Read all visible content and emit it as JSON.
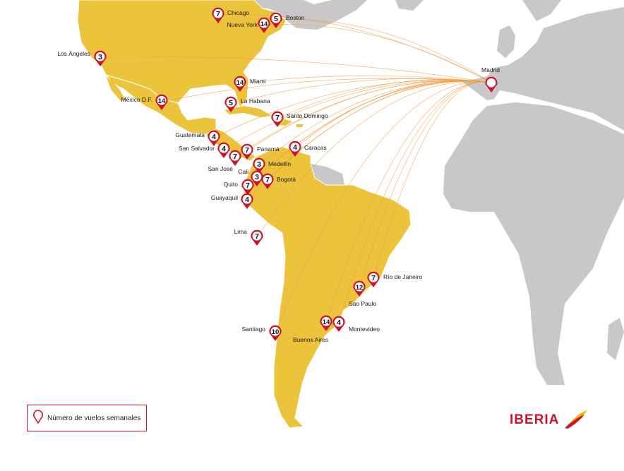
{
  "colors": {
    "ocean": "#ffffff",
    "land_other": "#c8c8c8",
    "land_served": "#ecc43c",
    "border": "#ffffff",
    "route": "#f39a3c",
    "pin": "#d0112b",
    "brand_red": "#d0112b",
    "brand_yellow": "#f4b000"
  },
  "hub": {
    "name": "Madrid",
    "icon": "map-pin-icon"
  },
  "destinations": [
    {
      "name": "Chicago",
      "flights": "7"
    },
    {
      "name": "Boston",
      "flights": "5"
    },
    {
      "name": "Nueva York",
      "flights": "14"
    },
    {
      "name": "Los Ángeles",
      "flights": "3"
    },
    {
      "name": "Miami",
      "flights": "14"
    },
    {
      "name": "México D.F.",
      "flights": "14"
    },
    {
      "name": "La Habana",
      "flights": "5"
    },
    {
      "name": "Santo Domingo",
      "flights": "7"
    },
    {
      "name": "Guatemala",
      "flights": "4"
    },
    {
      "name": "San Salvador",
      "flights": "4"
    },
    {
      "name": "San José",
      "flights": "7"
    },
    {
      "name": "Panamá",
      "flights": "7"
    },
    {
      "name": "Caracas",
      "flights": "4"
    },
    {
      "name": "Medellín",
      "flights": "3"
    },
    {
      "name": "Cali",
      "flights": "3"
    },
    {
      "name": "Bogotá",
      "flights": "7"
    },
    {
      "name": "Quito",
      "flights": "7"
    },
    {
      "name": "Guayaquil",
      "flights": "4"
    },
    {
      "name": "Lima",
      "flights": "7"
    },
    {
      "name": "Río de Janeiro",
      "flights": "7"
    },
    {
      "name": "Sao Paulo",
      "flights": "12"
    },
    {
      "name": "Montevideo",
      "flights": "4"
    },
    {
      "name": "Buenos Aires",
      "flights": "14"
    },
    {
      "name": "Santiago",
      "flights": "10"
    }
  ],
  "legend": {
    "label": "Número de vuelos semanales",
    "icon": "map-pin-icon"
  },
  "logo": {
    "text": "IBERIA",
    "icon": "iberia-wing-icon"
  }
}
